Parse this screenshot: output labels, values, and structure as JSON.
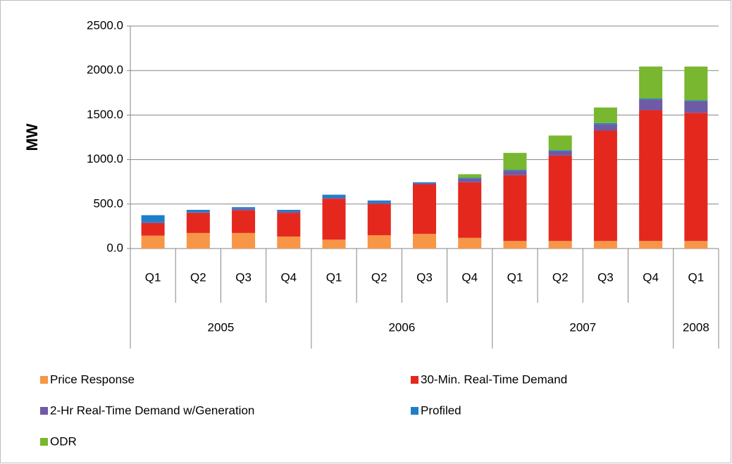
{
  "chart_data": {
    "type": "stacked-bar",
    "y_label": "MW",
    "groups": [
      {
        "name": "2005",
        "categories": [
          "Q1",
          "Q2",
          "Q3",
          "Q4"
        ]
      },
      {
        "name": "2006",
        "categories": [
          "Q1",
          "Q2",
          "Q3",
          "Q4"
        ]
      },
      {
        "name": "2007",
        "categories": [
          "Q1",
          "Q2",
          "Q3",
          "Q4"
        ]
      },
      {
        "name": "2008",
        "categories": [
          "Q1"
        ]
      }
    ],
    "series": [
      {
        "name": "Price Response",
        "color": "#f79646",
        "values": [
          145,
          175,
          175,
          135,
          100,
          150,
          165,
          120,
          85,
          85,
          85,
          85,
          85
        ]
      },
      {
        "name": "30-Min. Real-Time  Demand",
        "color": "#e4281e",
        "values": [
          140,
          225,
          255,
          265,
          460,
          350,
          555,
          625,
          740,
          960,
          1240,
          1470,
          1440
        ]
      },
      {
        "name": "2-Hr Real-Time Demand w/Generation",
        "color": "#6f5aa6",
        "values": [
          10,
          10,
          15,
          15,
          10,
          15,
          15,
          40,
          50,
          50,
          70,
          120,
          130
        ]
      },
      {
        "name": "Profiled",
        "color": "#1e7fc8",
        "values": [
          80,
          25,
          20,
          20,
          35,
          25,
          10,
          10,
          10,
          10,
          15,
          10,
          10
        ]
      },
      {
        "name": "ODR",
        "color": "#78b72f",
        "values": [
          0,
          0,
          0,
          0,
          0,
          0,
          0,
          40,
          190,
          165,
          175,
          360,
          380
        ]
      }
    ],
    "ylim": [
      0,
      2500
    ],
    "yticks": [
      {
        "value": 0,
        "label": "0.0"
      },
      {
        "value": 500,
        "label": "500.0"
      },
      {
        "value": 1000,
        "label": "1000.0"
      },
      {
        "value": 1500,
        "label": "1500.0"
      },
      {
        "value": 2000,
        "label": "2000.0"
      },
      {
        "value": 2500,
        "label": "2500.0"
      }
    ],
    "grid": true
  }
}
